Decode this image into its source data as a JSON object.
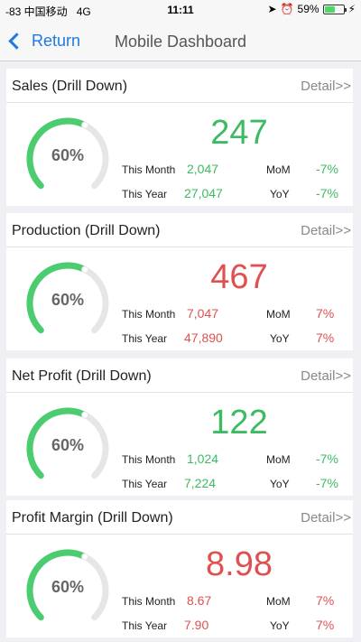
{
  "status_bar": {
    "carrier": "-83 中国移动",
    "network": "4G",
    "time": "11:11",
    "battery_percent": "59%",
    "battery_level": 0.59
  },
  "nav": {
    "back_label": "Return",
    "title": "Mobile Dashboard"
  },
  "colors": {
    "positive": "#3dbb62",
    "negative": "#e05050",
    "gauge_track": "#e6e6e6",
    "gauge_fill": "#4ccc70"
  },
  "cards": [
    {
      "title": "Sales (Drill Down)",
      "detail": "Detail>>",
      "gauge_label": "60%",
      "gauge_value": 0.6,
      "value": "247",
      "value_color": "green",
      "month_label": "This Month",
      "month_value": "2,047",
      "year_label": "This Year",
      "year_value": "27,047",
      "mom_label": "MoM",
      "mom_value": "-7%",
      "yoy_label": "YoY",
      "yoy_value": "-7%"
    },
    {
      "title": "Production (Drill Down)",
      "detail": "Detail>>",
      "gauge_label": "60%",
      "gauge_value": 0.6,
      "value": "467",
      "value_color": "red",
      "month_label": "This Month",
      "month_value": "7,047",
      "year_label": "This Year",
      "year_value": "47,890",
      "mom_label": "MoM",
      "mom_value": "7%",
      "yoy_label": "YoY",
      "yoy_value": "7%"
    },
    {
      "title": "Net Profit (Drill Down)",
      "detail": "Detail>>",
      "gauge_label": "60%",
      "gauge_value": 0.6,
      "value": "122",
      "value_color": "green",
      "month_label": "This Month",
      "month_value": "1,024",
      "year_label": "This Year",
      "year_value": "7,224",
      "mom_label": "MoM",
      "mom_value": "-7%",
      "yoy_label": "YoY",
      "yoy_value": "-7%"
    },
    {
      "title": "Profit Margin (Drill Down)",
      "detail": "Detail>>",
      "gauge_label": "60%",
      "gauge_value": 0.6,
      "value": "8.98",
      "value_color": "red",
      "month_label": "This Month",
      "month_value": "8.67",
      "year_label": "This Year",
      "year_value": "7.90",
      "mom_label": "MoM",
      "mom_value": "7%",
      "yoy_label": "YoY",
      "yoy_value": "7%"
    }
  ]
}
